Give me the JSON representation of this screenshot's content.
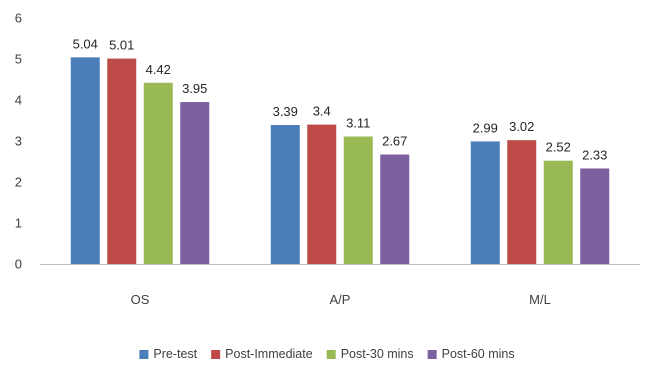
{
  "chart_data": {
    "type": "bar",
    "categories": [
      "OS",
      "A/P",
      "M/L"
    ],
    "series": [
      {
        "name": "Pre-test",
        "color": "#4a7ebb",
        "values": [
          5.04,
          3.39,
          2.99
        ],
        "labels": [
          "5.04",
          "3.39",
          "2.99"
        ]
      },
      {
        "name": "Post-Immediate",
        "color": "#be4b48",
        "values": [
          5.01,
          3.4,
          3.02
        ],
        "labels": [
          "5.01",
          "3.4",
          "3.02"
        ]
      },
      {
        "name": "Post-30 mins",
        "color": "#98b954",
        "values": [
          4.42,
          3.11,
          2.52
        ],
        "labels": [
          "4.42",
          "3.11",
          "2.52"
        ]
      },
      {
        "name": "Post-60 mins",
        "color": "#7d60a0",
        "values": [
          3.95,
          2.67,
          2.33
        ],
        "labels": [
          "3.95",
          "2.67",
          "2.33"
        ]
      }
    ],
    "title": "",
    "xlabel": "",
    "ylabel": "",
    "ylim": [
      0,
      6
    ],
    "yticks": [
      "0",
      "1",
      "2",
      "3",
      "4",
      "5",
      "6"
    ],
    "grid": false,
    "legend": "bottom"
  }
}
